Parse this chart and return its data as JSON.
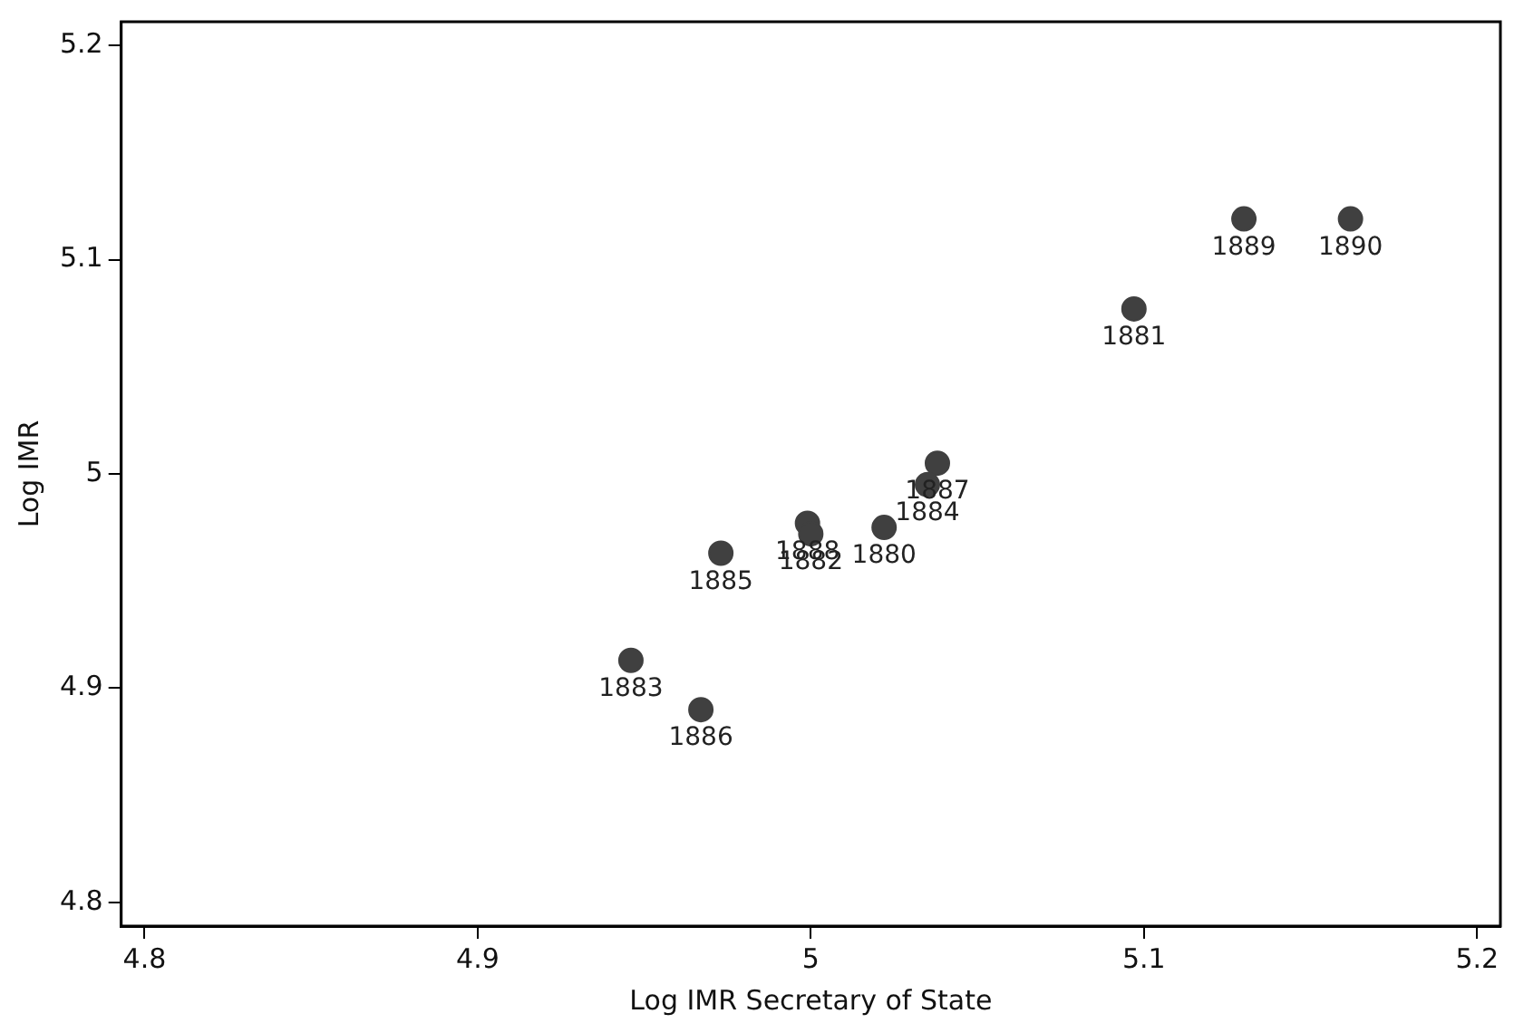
{
  "chart_data": {
    "type": "scatter",
    "xlabel": "Log IMR Secretary of State",
    "ylabel": "Log IMR",
    "x": [
      5.13,
      5.162,
      5.097,
      5.038,
      5.035,
      4.999,
      5.0,
      5.022,
      4.973,
      4.946,
      4.967
    ],
    "series": [
      {
        "color": "#404040",
        "values": [
          5.119,
          5.119,
          5.077,
          5.005,
          4.995,
          4.977,
          4.972,
          4.975,
          4.963,
          4.913,
          4.89
        ]
      }
    ],
    "xlim": [
      4.793,
      5.207
    ],
    "ylim": [
      4.789,
      5.211
    ],
    "xticks": [
      4.8,
      4.9,
      5,
      5.1,
      5.2
    ],
    "yticks": [
      4.8,
      4.9,
      5,
      5.1,
      5.2
    ],
    "grid": false,
    "legend": false,
    "marker": "circle",
    "annotations": [
      {
        "text": "1889",
        "x": 5.13,
        "y": 5.119
      },
      {
        "text": "1890",
        "x": 5.162,
        "y": 5.119
      },
      {
        "text": "1881",
        "x": 5.097,
        "y": 5.077
      },
      {
        "text": "1887",
        "x": 5.038,
        "y": 5.005
      },
      {
        "text": "1884",
        "x": 5.035,
        "y": 4.995
      },
      {
        "text": "1888",
        "x": 4.999,
        "y": 4.977
      },
      {
        "text": "1882",
        "x": 5.0,
        "y": 4.972
      },
      {
        "text": "1880",
        "x": 5.022,
        "y": 4.975
      },
      {
        "text": "1885",
        "x": 4.973,
        "y": 4.963
      },
      {
        "text": "1883",
        "x": 4.946,
        "y": 4.913
      },
      {
        "text": "1886",
        "x": 4.967,
        "y": 4.89
      }
    ]
  }
}
